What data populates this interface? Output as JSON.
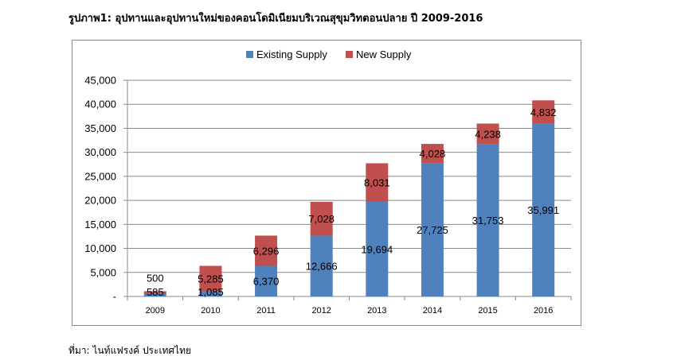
{
  "figure": {
    "title": "รูปภาพ1:  อุปทานและอุปทานใหม่ของคอนโดมิเนียมบริเวณสุขุมวิทตอนปลาย ปี 2009-2016",
    "source": "ที่มา: ไนท์แฟรงค์ ประเทศไทย"
  },
  "chart_data": {
    "type": "bar",
    "stacked": true,
    "categories": [
      "2009",
      "2010",
      "2011",
      "2012",
      "2013",
      "2014",
      "2015",
      "2016"
    ],
    "series": [
      {
        "name": "Existing Supply",
        "color": "#4f81bd",
        "values": [
          585,
          1085,
          6370,
          12666,
          19694,
          27725,
          31753,
          35991
        ],
        "labels": [
          "585",
          "1,085",
          "6,370",
          "12,666",
          "19,694",
          "27,725",
          "31,753",
          "35,991"
        ]
      },
      {
        "name": "New Supply",
        "color": "#c0504d",
        "values": [
          500,
          5285,
          6296,
          7028,
          8031,
          4028,
          4238,
          4832
        ],
        "labels": [
          "500",
          "5,285",
          "6,296",
          "7,028",
          "8,031",
          "4,028",
          "4,238",
          "4,832"
        ]
      }
    ],
    "ylim": [
      0,
      45000
    ],
    "yticks": [
      0,
      5000,
      10000,
      15000,
      20000,
      25000,
      30000,
      35000,
      40000,
      45000
    ],
    "ytick_labels": [
      "-",
      "5,000",
      "10,000",
      "15,000",
      "20,000",
      "25,000",
      "30,000",
      "35,000",
      "40,000",
      "45,000"
    ],
    "title": "",
    "xlabel": "",
    "ylabel": "",
    "grid": true,
    "legend": "top-center"
  }
}
